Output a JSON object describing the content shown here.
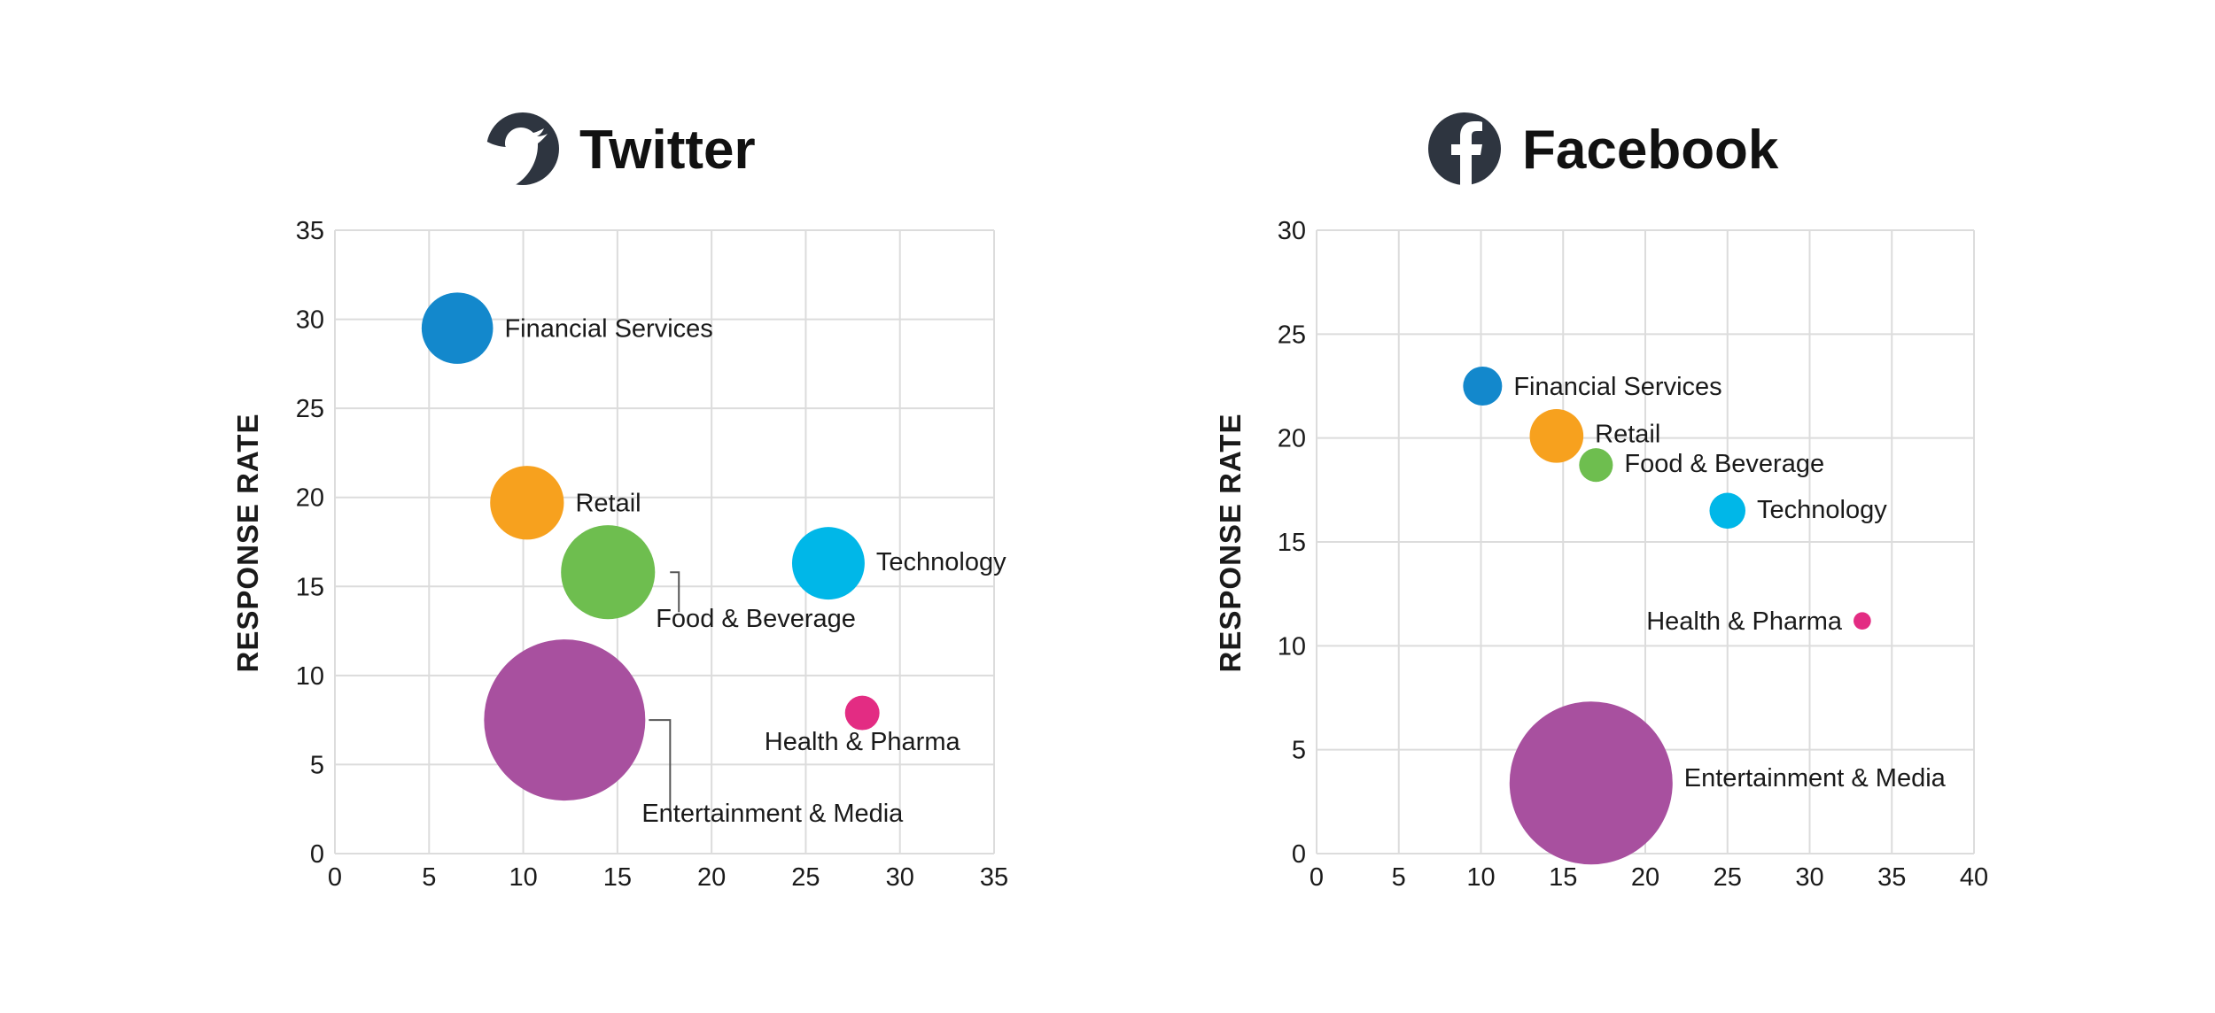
{
  "chart_data": [
    {
      "id": "twitter",
      "type": "scatter",
      "title": "Twitter",
      "icon": "twitter-bird-icon",
      "xlabel": "",
      "ylabel": "RESPONSE RATE",
      "xlim": [
        0,
        35
      ],
      "ylim": [
        0,
        35
      ],
      "xticks": [
        0,
        5,
        10,
        15,
        20,
        25,
        30,
        35
      ],
      "yticks": [
        0,
        5,
        10,
        15,
        20,
        25,
        30,
        35
      ],
      "grid": true,
      "series": [
        {
          "name": "Financial Services",
          "x": 6.5,
          "y": 29.5,
          "size": 3,
          "color": "#1388cc"
        },
        {
          "name": "Retail",
          "x": 10.2,
          "y": 19.7,
          "size": 3.2,
          "color": "#f7a11e"
        },
        {
          "name": "Food & Beverage",
          "x": 14.5,
          "y": 15.8,
          "size": 5.2,
          "color": "#6ebe4f"
        },
        {
          "name": "Technology",
          "x": 26.2,
          "y": 16.3,
          "size": 3.1,
          "color": "#00b7e8"
        },
        {
          "name": "Entertainment & Media",
          "x": 12.2,
          "y": 7.5,
          "size": 15.3,
          "color": "#a8509f"
        },
        {
          "name": "Health & Pharma",
          "x": 28.0,
          "y": 7.9,
          "size": 0.7,
          "color": "#e32c83"
        }
      ]
    },
    {
      "id": "facebook",
      "type": "scatter",
      "title": "Facebook",
      "icon": "facebook-f-icon",
      "xlabel": "",
      "ylabel": "RESPONSE RATE",
      "xlim": [
        0,
        40
      ],
      "ylim": [
        0,
        30
      ],
      "xticks": [
        0,
        5,
        10,
        15,
        20,
        25,
        30,
        35,
        40
      ],
      "yticks": [
        0,
        5,
        10,
        15,
        20,
        25,
        30
      ],
      "grid": true,
      "series": [
        {
          "name": "Financial Services",
          "x": 10.1,
          "y": 22.5,
          "size": 1,
          "color": "#1388cc"
        },
        {
          "name": "Retail",
          "x": 14.6,
          "y": 20.1,
          "size": 1.9,
          "color": "#f7a11e"
        },
        {
          "name": "Food & Beverage",
          "x": 17.0,
          "y": 18.7,
          "size": 0.75,
          "color": "#6ebe4f"
        },
        {
          "name": "Technology",
          "x": 25.0,
          "y": 16.5,
          "size": 0.85,
          "color": "#00b7e8"
        },
        {
          "name": "Health & Pharma",
          "x": 33.2,
          "y": 11.2,
          "size": 0.2,
          "color": "#e32c83"
        },
        {
          "name": "Entertainment & Media",
          "x": 16.7,
          "y": 3.4,
          "size": 17.5,
          "color": "#a8509f"
        }
      ]
    }
  ]
}
